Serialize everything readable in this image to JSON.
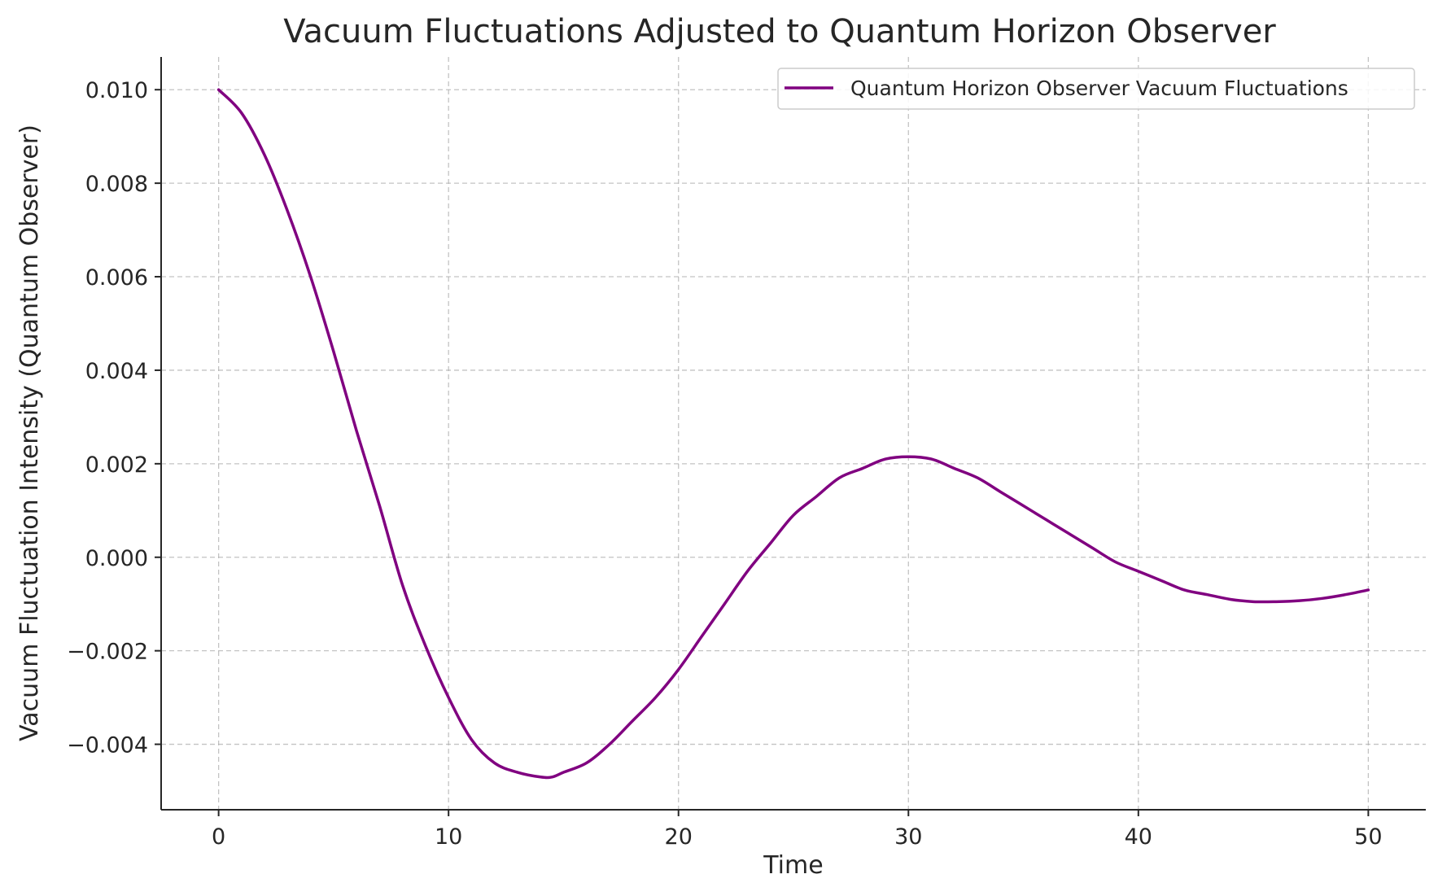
{
  "chart_data": {
    "type": "line",
    "title": "Vacuum Fluctuations Adjusted to Quantum Horizon Observer",
    "xlabel": "Time",
    "ylabel": "Vacuum Fluctuation Intensity (Quantum Observer)",
    "xlim": [
      -2.5,
      52.5
    ],
    "ylim": [
      -0.0054,
      0.0107
    ],
    "xticks": [
      0,
      10,
      20,
      30,
      40,
      50
    ],
    "xtick_labels": [
      "0",
      "10",
      "20",
      "30",
      "40",
      "50"
    ],
    "yticks": [
      -0.004,
      -0.002,
      0.0,
      0.002,
      0.004,
      0.006,
      0.008,
      0.01
    ],
    "ytick_labels": [
      "−0.004",
      "−0.002",
      "0.000",
      "0.002",
      "0.004",
      "0.006",
      "0.008",
      "0.010"
    ],
    "grid": true,
    "legend": {
      "position": "top-right"
    },
    "series": [
      {
        "name": "Quantum Horizon Observer Vacuum Fluctuations",
        "color": "#800080",
        "x": [
          0,
          1,
          2,
          3,
          4,
          5,
          6,
          7,
          8,
          9,
          10,
          11,
          12,
          13,
          14,
          14.5,
          15,
          16,
          17,
          18,
          19,
          20,
          21,
          22,
          23,
          24,
          25,
          26,
          27,
          28,
          29,
          30,
          31,
          32,
          33,
          34,
          35,
          36,
          37,
          38,
          39,
          40,
          41,
          42,
          43,
          44,
          45,
          46,
          47,
          48,
          49,
          50
        ],
        "y": [
          0.01,
          0.0095,
          0.0086,
          0.0074,
          0.006,
          0.0044,
          0.0027,
          0.0011,
          -0.0006,
          -0.0019,
          -0.003,
          -0.0039,
          -0.0044,
          -0.0046,
          -0.0047,
          -0.0047,
          -0.0046,
          -0.0044,
          -0.004,
          -0.0035,
          -0.003,
          -0.0024,
          -0.0017,
          -0.001,
          -0.0003,
          0.0003,
          0.0009,
          0.0013,
          0.0017,
          0.0019,
          0.0021,
          0.00215,
          0.0021,
          0.0019,
          0.0017,
          0.0014,
          0.0011,
          0.0008,
          0.0005,
          0.0002,
          -0.0001,
          -0.0003,
          -0.0005,
          -0.0007,
          -0.0008,
          -0.0009,
          -0.00095,
          -0.00095,
          -0.00093,
          -0.00088,
          -0.0008,
          -0.0007
        ]
      }
    ]
  }
}
